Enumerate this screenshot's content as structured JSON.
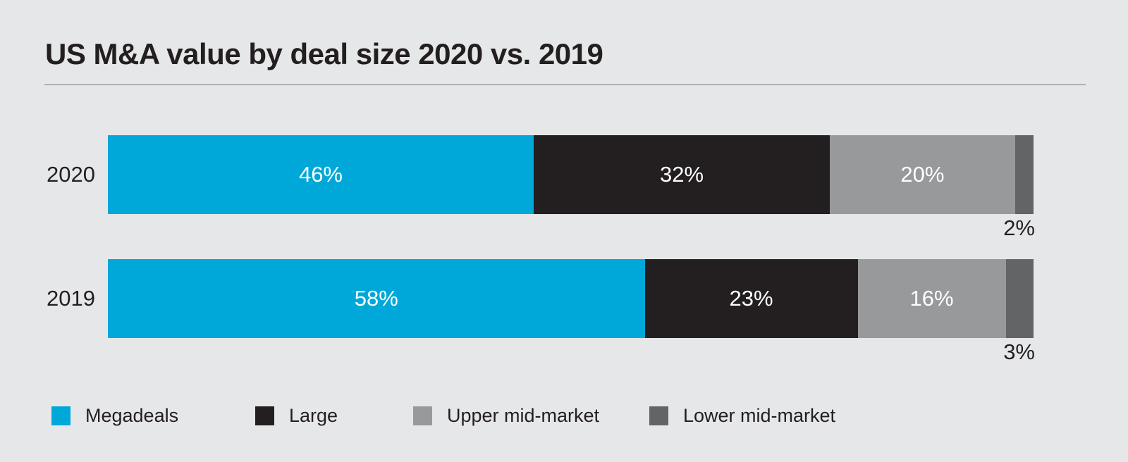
{
  "title": "US M&A value by deal size 2020 vs. 2019",
  "colors": {
    "background": "#E6E7E8",
    "text": "#231F20",
    "divider": "#77787B",
    "megadeals_cyan": "#00A8D9",
    "large_black": "#231F20",
    "upper_mid_gray": "#97999B",
    "lower_mid_darkgray": "#636466"
  },
  "chart_data": {
    "type": "bar",
    "variant": "horizontal-stacked",
    "unit": "percent",
    "title": "US M&A value by deal size 2020 vs. 2019",
    "categories": [
      "2020",
      "2019"
    ],
    "series": [
      {
        "name": "Megadeals",
        "color": "#00A8D9",
        "values": [
          46,
          58
        ],
        "labels": [
          "46%",
          "58%"
        ],
        "label_placement": "inside"
      },
      {
        "name": "Large",
        "color": "#231F20",
        "values": [
          32,
          23
        ],
        "labels": [
          "32%",
          "23%"
        ],
        "label_placement": "inside"
      },
      {
        "name": "Upper mid-market",
        "color": "#97999B",
        "values": [
          20,
          16
        ],
        "labels": [
          "20%",
          "16%"
        ],
        "label_placement": "inside"
      },
      {
        "name": "Lower mid-market",
        "color": "#636466",
        "values": [
          2,
          3
        ],
        "labels": [
          "2%",
          "3%"
        ],
        "label_placement": "below"
      }
    ],
    "xlim": [
      0,
      100
    ],
    "grid": false,
    "legend_position": "bottom"
  },
  "legend": {
    "items": [
      {
        "label": "Megadeals",
        "color": "#00A8D9"
      },
      {
        "label": "Large",
        "color": "#231F20"
      },
      {
        "label": "Upper mid-market",
        "color": "#97999B"
      },
      {
        "label": "Lower mid-market",
        "color": "#636466"
      }
    ]
  }
}
